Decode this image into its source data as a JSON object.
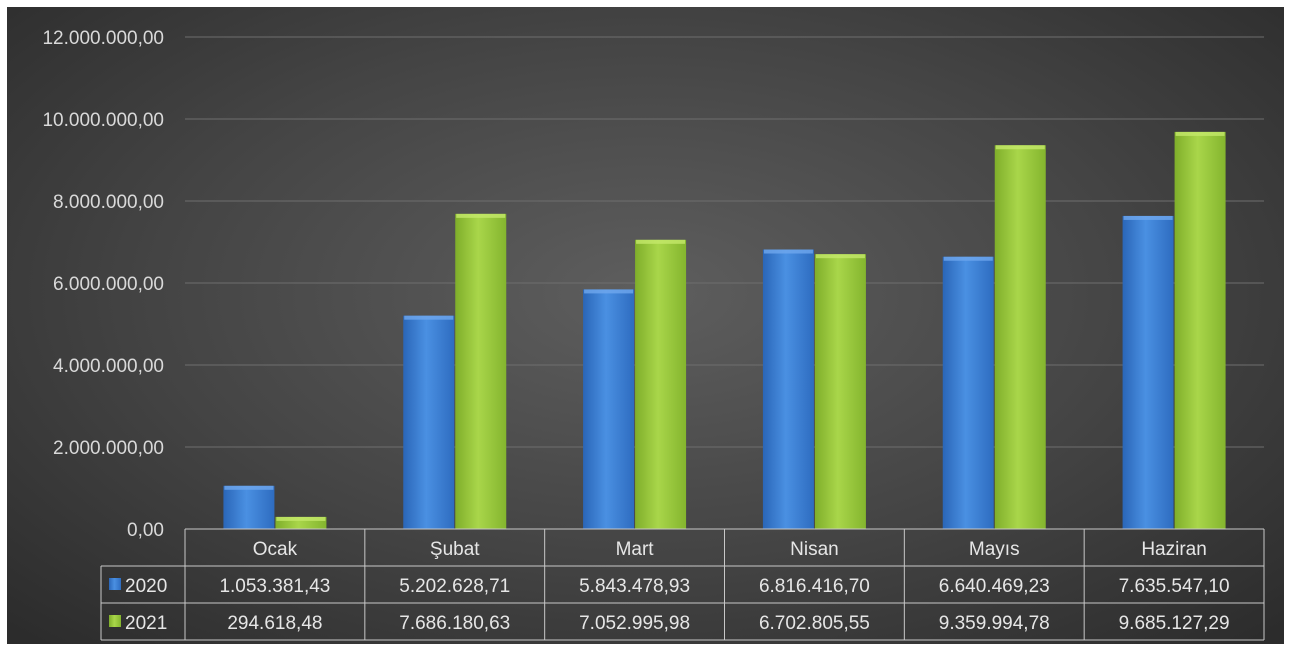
{
  "chart_data": {
    "type": "bar",
    "categories": [
      "Ocak",
      "Şubat",
      "Mart",
      "Nisan",
      "Mayıs",
      "Haziran"
    ],
    "series": [
      {
        "name": "2020",
        "color": "#3b7fd4",
        "values": [
          1053381.43,
          5202628.71,
          5843478.93,
          6816416.7,
          6640469.23,
          7635547.1
        ],
        "labels": [
          "1.053.381,43",
          "5.202.628,71",
          "5.843.478,93",
          "6.816.416,70",
          "6.640.469,23",
          "7.635.547,10"
        ]
      },
      {
        "name": "2021",
        "color": "#9acd3a",
        "values": [
          294618.48,
          7686180.63,
          7052995.98,
          6702805.55,
          9359994.78,
          9685127.29
        ],
        "labels": [
          "294.618,48",
          "7.686.180,63",
          "7.052.995,98",
          "6.702.805,55",
          "9.359.994,78",
          "9.685.127,29"
        ]
      }
    ],
    "y_ticks": [
      "0,00",
      "2.000.000,00",
      "4.000.000,00",
      "6.000.000,00",
      "8.000.000,00",
      "10.000.000,00",
      "12.000.000,00"
    ],
    "ylim": [
      0,
      12000000
    ],
    "grid": true,
    "legend": "data-table"
  }
}
